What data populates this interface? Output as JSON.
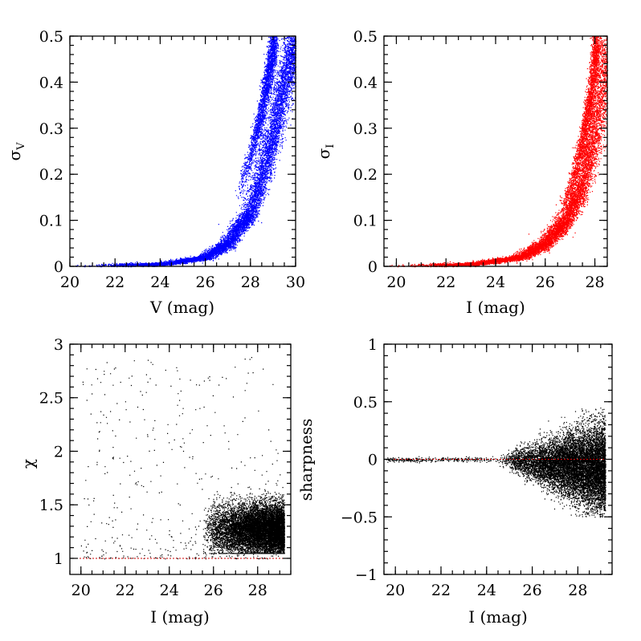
{
  "chart_data": [
    {
      "type": "scatter",
      "id": "sigma_v",
      "xlabel": "V (mag)",
      "ylabel_main": "σ",
      "ylabel_sub": "V",
      "xlim": [
        20,
        30
      ],
      "ylim": [
        0,
        0.5
      ],
      "xticks": [
        20,
        22,
        24,
        26,
        28,
        30
      ],
      "xtick_labels": [
        "20",
        "22",
        "24",
        "26",
        "28",
        "30"
      ],
      "yticks": [
        0,
        0.1,
        0.2,
        0.3,
        0.4,
        0.5
      ],
      "ytick_labels": [
        "0",
        "0.1",
        "0.2",
        "0.3",
        "0.4",
        "0.5"
      ],
      "point_color": "#0000ff",
      "reference_line": null,
      "bands": [
        {
          "x": [
            20.0,
            24.0,
            26.0,
            27.0,
            28.0,
            28.5,
            29.0,
            29.5,
            30.0
          ],
          "y": [
            0.0,
            0.005,
            0.02,
            0.05,
            0.12,
            0.2,
            0.29,
            0.4,
            0.5
          ]
        },
        {
          "x": [
            27.2,
            27.6,
            28.0,
            28.4,
            28.8,
            29.1
          ],
          "y": [
            0.13,
            0.18,
            0.24,
            0.32,
            0.42,
            0.5
          ]
        }
      ]
    },
    {
      "type": "scatter",
      "id": "sigma_i",
      "xlabel": "I (mag)",
      "ylabel_main": "σ",
      "ylabel_sub": "I",
      "xlim": [
        19.5,
        28.5
      ],
      "ylim": [
        0,
        0.5
      ],
      "xticks": [
        20,
        22,
        24,
        26,
        28
      ],
      "xtick_labels": [
        "20",
        "22",
        "24",
        "26",
        "28"
      ],
      "yticks": [
        0,
        0.1,
        0.2,
        0.3,
        0.4,
        0.5
      ],
      "ytick_labels": [
        "0",
        "0.1",
        "0.2",
        "0.3",
        "0.4",
        "0.5"
      ],
      "point_color": "#ff0000",
      "reference_line": null,
      "bands": [
        {
          "x": [
            19.5,
            23.0,
            25.0,
            26.0,
            26.8,
            27.4,
            27.9,
            28.3,
            28.5
          ],
          "y": [
            0.0,
            0.005,
            0.02,
            0.05,
            0.1,
            0.17,
            0.27,
            0.4,
            0.5
          ]
        },
        {
          "x": [
            26.5,
            27.0,
            27.4,
            27.8,
            28.1
          ],
          "y": [
            0.1,
            0.17,
            0.25,
            0.36,
            0.5
          ]
        }
      ]
    },
    {
      "type": "scatter",
      "id": "chi",
      "xlabel": "I (mag)",
      "ylabel_main": "χ",
      "ylabel_sub": "",
      "xlim": [
        19.5,
        29.5
      ],
      "ylim": [
        0.85,
        3.0
      ],
      "xticks": [
        20,
        22,
        24,
        26,
        28
      ],
      "xtick_labels": [
        "20",
        "22",
        "24",
        "26",
        "28"
      ],
      "yticks": [
        1,
        1.5,
        2,
        2.5,
        3
      ],
      "ytick_labels": [
        "1",
        "1.5",
        "2",
        "2.5",
        "3"
      ],
      "point_color": "#000000",
      "reference_line": {
        "y": 1.0,
        "color": "#cc0000"
      },
      "cloud": {
        "x_range": [
          25.5,
          29.2
        ],
        "y_center": 1.27,
        "y_spread": 0.12
      },
      "scatter_range": {
        "x": [
          20.0,
          29.0
        ],
        "y": [
          1.0,
          2.9
        ]
      }
    },
    {
      "type": "scatter",
      "id": "sharpness",
      "xlabel": "I (mag)",
      "ylabel_main": "sharpness",
      "ylabel_sub": "",
      "xlim": [
        19.5,
        29.5
      ],
      "ylim": [
        -1,
        1
      ],
      "xticks": [
        20,
        22,
        24,
        26,
        28
      ],
      "xtick_labels": [
        "20",
        "22",
        "24",
        "26",
        "28"
      ],
      "yticks": [
        -1,
        -0.5,
        0,
        0.5,
        1
      ],
      "ytick_labels": [
        "−1",
        "−0.5",
        "0",
        "0.5",
        "1"
      ],
      "point_color": "#000000",
      "reference_line": {
        "y": 0.0,
        "color": "#cc0000"
      },
      "funnel": {
        "x_start": 24.5,
        "x_end": 29.2,
        "y_max": 0.45,
        "y_min": -0.5
      }
    }
  ]
}
